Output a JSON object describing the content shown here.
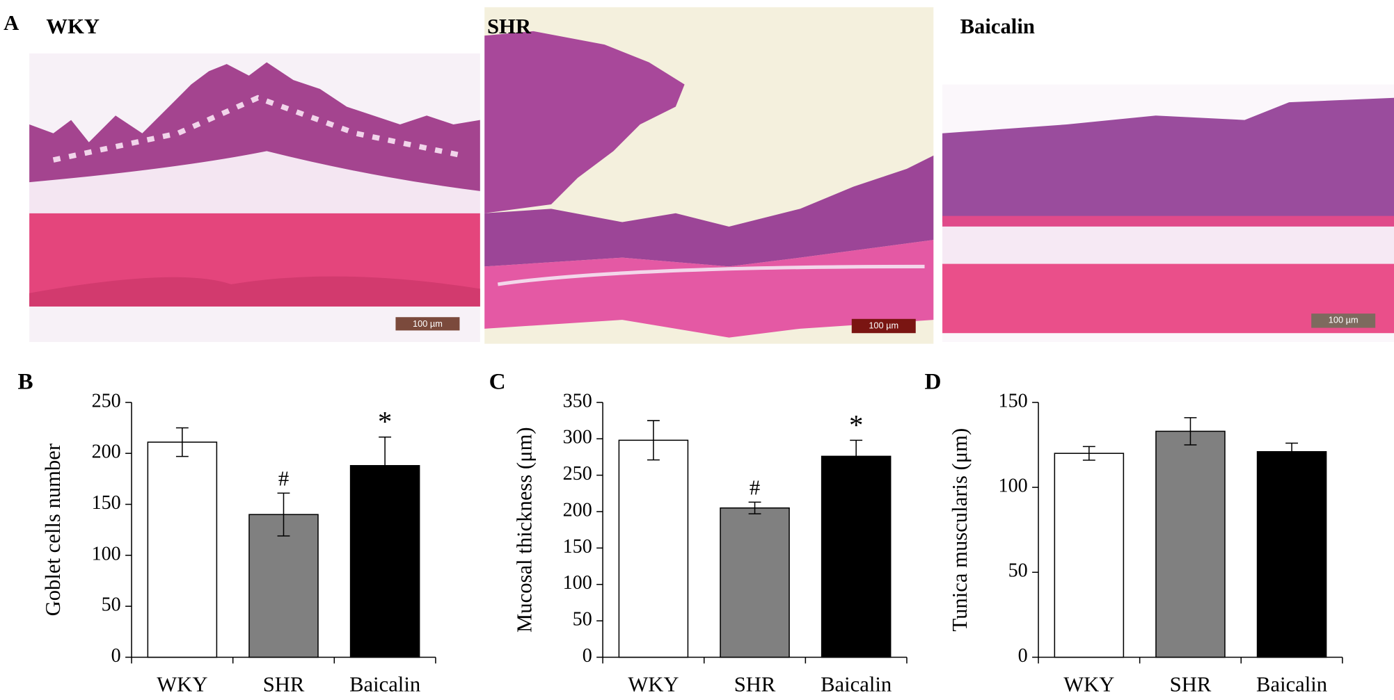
{
  "panel_a": {
    "label": "A",
    "images": [
      {
        "title": "WKY",
        "scale_bar": "100 µm"
      },
      {
        "title": "SHR",
        "scale_bar": "100 µm"
      },
      {
        "title": "Baicalin",
        "scale_bar": "100 µm"
      }
    ]
  },
  "chart_data": [
    {
      "type": "bar",
      "panel_label": "B",
      "ylabel": "Goblet cells number",
      "categories": [
        "WKY",
        "SHR",
        "Baicalin"
      ],
      "values": [
        211,
        140,
        188
      ],
      "errors": [
        14,
        21,
        28
      ],
      "colors": [
        "#ffffff",
        "#808080",
        "#000000"
      ],
      "significance": [
        null,
        "#",
        "*"
      ],
      "ylim": [
        0,
        250
      ],
      "yticks": [
        0,
        50,
        100,
        150,
        200,
        250
      ]
    },
    {
      "type": "bar",
      "panel_label": "C",
      "ylabel": "Mucosal thickness  (μm)",
      "categories": [
        "WKY",
        "SHR",
        "Baicalin"
      ],
      "values": [
        298,
        205,
        276
      ],
      "errors": [
        27,
        8,
        22
      ],
      "colors": [
        "#ffffff",
        "#808080",
        "#000000"
      ],
      "significance": [
        null,
        "#",
        "*"
      ],
      "ylim": [
        0,
        350
      ],
      "yticks": [
        0,
        50,
        100,
        150,
        200,
        250,
        300,
        350
      ]
    },
    {
      "type": "bar",
      "panel_label": "D",
      "ylabel": "Tunica muscularis  (μm)",
      "categories": [
        "WKY",
        "SHR",
        "Baicalin"
      ],
      "values": [
        120,
        133,
        121
      ],
      "errors": [
        4,
        8,
        5
      ],
      "colors": [
        "#ffffff",
        "#808080",
        "#000000"
      ],
      "ylim": [
        0,
        150
      ],
      "yticks": [
        0,
        50,
        100,
        150
      ]
    }
  ]
}
